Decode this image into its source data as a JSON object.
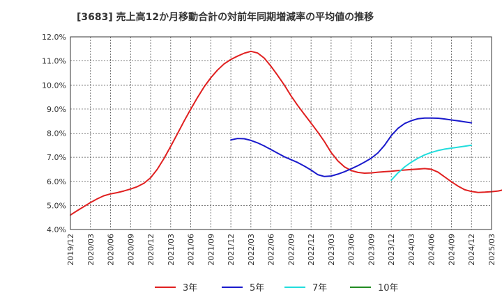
{
  "chart_data": {
    "type": "line",
    "title": "[3683]  売上高12か月移動合計の対前年同期増減率の平均値の推移",
    "ylim": [
      4.0,
      12.0
    ],
    "y_ticks": [
      "4.0%",
      "5.0%",
      "6.0%",
      "7.0%",
      "8.0%",
      "9.0%",
      "10.0%",
      "11.0%",
      "12.0%"
    ],
    "x_ticks": [
      "2019/12",
      "2020/03",
      "2020/06",
      "2020/09",
      "2020/12",
      "2021/03",
      "2021/06",
      "2021/09",
      "2021/12",
      "2022/03",
      "2022/06",
      "2022/09",
      "2022/12",
      "2023/03",
      "2023/06",
      "2023/09",
      "2023/12",
      "2024/03",
      "2024/06",
      "2024/09",
      "2024/12",
      "2025/03"
    ],
    "grid": true,
    "legend_position": "bottom",
    "series": [
      {
        "name": "3年",
        "color": "#e02020",
        "start_month": 0,
        "values": [
          4.6,
          4.78,
          4.95,
          5.12,
          5.27,
          5.4,
          5.48,
          5.53,
          5.6,
          5.68,
          5.78,
          5.92,
          6.15,
          6.5,
          6.95,
          7.45,
          7.97,
          8.5,
          9.0,
          9.48,
          9.92,
          10.3,
          10.62,
          10.88,
          11.06,
          11.2,
          11.32,
          11.4,
          11.33,
          11.12,
          10.78,
          10.4,
          10.0,
          9.55,
          9.15,
          8.78,
          8.42,
          8.05,
          7.65,
          7.2,
          6.85,
          6.6,
          6.45,
          6.37,
          6.34,
          6.35,
          6.38,
          6.4,
          6.42,
          6.45,
          6.47,
          6.49,
          6.51,
          6.53,
          6.5,
          6.38,
          6.18,
          5.98,
          5.8,
          5.65,
          5.58,
          5.54,
          5.55,
          5.57,
          5.6,
          5.66
        ]
      },
      {
        "name": "5年",
        "color": "#1a1acc",
        "start_month": 24,
        "values": [
          7.72,
          7.78,
          7.77,
          7.7,
          7.6,
          7.47,
          7.32,
          7.17,
          7.02,
          6.9,
          6.78,
          6.63,
          6.47,
          6.28,
          6.2,
          6.22,
          6.3,
          6.4,
          6.52,
          6.65,
          6.8,
          6.96,
          7.18,
          7.5,
          7.9,
          8.2,
          8.4,
          8.52,
          8.6,
          8.63,
          8.63,
          8.62,
          8.59,
          8.55,
          8.51,
          8.47,
          8.43
        ]
      },
      {
        "name": "7年",
        "color": "#22dddd",
        "start_month": 48,
        "values": [
          6.05,
          6.35,
          6.6,
          6.8,
          6.96,
          7.1,
          7.2,
          7.28,
          7.34,
          7.38,
          7.42,
          7.46,
          7.5
        ]
      },
      {
        "name": "10年",
        "color": "#228b22",
        "start_month": 0,
        "values": []
      }
    ]
  }
}
